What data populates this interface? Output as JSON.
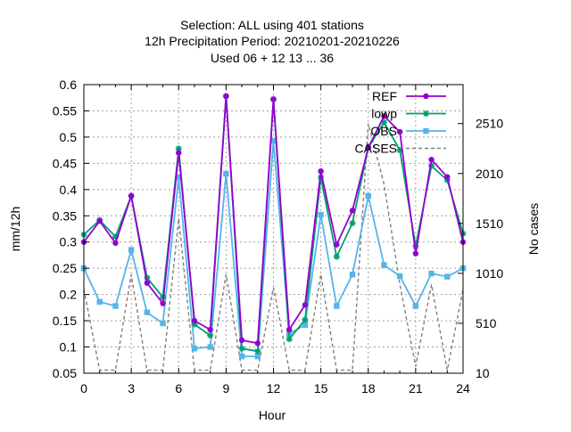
{
  "chart_data": {
    "type": "line",
    "title_lines": [
      "Selection: ALL using   401 stations",
      "12h Precipitation   Period: 20210201-20210226",
      "Used  06  + 12 13 ... 36"
    ],
    "xlabel": "Hour",
    "ylabel": "mm/12h",
    "y2label": "No cases",
    "xlim": [
      0,
      24
    ],
    "ylim": [
      0.05,
      0.6
    ],
    "y2lim": [
      10,
      2900
    ],
    "xticks": [
      0,
      3,
      6,
      9,
      12,
      15,
      18,
      21,
      24
    ],
    "yticks": [
      0.05,
      0.1,
      0.15,
      0.2,
      0.25,
      0.3,
      0.35,
      0.4,
      0.45,
      0.5,
      0.55,
      0.6
    ],
    "ytick_labels": [
      "0.05",
      "0.1",
      "0.15",
      "0.2",
      "0.25",
      "0.3",
      "0.35",
      "0.4",
      "0.45",
      "0.5",
      "0.55",
      "0.6"
    ],
    "y2ticks": [
      10,
      510,
      1010,
      1510,
      2010,
      2510
    ],
    "grid": true,
    "legend_position": "top-right",
    "x": [
      0,
      1,
      2,
      3,
      4,
      5,
      6,
      7,
      8,
      9,
      10,
      11,
      12,
      13,
      14,
      15,
      16,
      17,
      18,
      19,
      20,
      21,
      22,
      23,
      24
    ],
    "series": [
      {
        "name": "REF",
        "color": "#9400d3",
        "marker": "filled-circle",
        "axis": "y1",
        "dash": "solid",
        "values": [
          0.3,
          0.34,
          0.298,
          0.388,
          0.222,
          0.183,
          0.47,
          0.15,
          0.133,
          0.578,
          0.113,
          0.107,
          0.572,
          0.133,
          0.18,
          0.435,
          0.295,
          0.36,
          0.48,
          0.54,
          0.51,
          0.278,
          0.457,
          0.424,
          0.3
        ]
      },
      {
        "name": "lowp",
        "color": "#009e73",
        "marker": "star",
        "axis": "y1",
        "dash": "solid",
        "values": [
          0.314,
          0.342,
          0.31,
          0.388,
          0.232,
          0.195,
          0.478,
          0.143,
          0.122,
          0.578,
          0.097,
          0.092,
          0.572,
          0.115,
          0.152,
          0.423,
          0.272,
          0.336,
          0.48,
          0.528,
          0.475,
          0.292,
          0.445,
          0.418,
          0.316
        ]
      },
      {
        "name": "OBS",
        "color": "#56b4e9",
        "marker": "filled-square",
        "axis": "y1",
        "dash": "solid",
        "values": [
          0.25,
          0.186,
          0.178,
          0.285,
          0.166,
          0.145,
          0.423,
          0.097,
          0.1,
          0.43,
          0.082,
          0.082,
          0.493,
          0.125,
          0.142,
          0.352,
          0.178,
          0.238,
          0.388,
          0.256,
          0.235,
          0.178,
          0.24,
          0.234,
          0.25
        ]
      },
      {
        "name": "CASES",
        "color": "#808080",
        "marker": "none",
        "axis": "y2",
        "dash": "dashed",
        "values": [
          850,
          40,
          40,
          1000,
          40,
          40,
          1560,
          40,
          40,
          1000,
          40,
          40,
          870,
          40,
          40,
          1000,
          40,
          40,
          2510,
          1900,
          900,
          80,
          900,
          40,
          850
        ]
      }
    ]
  }
}
